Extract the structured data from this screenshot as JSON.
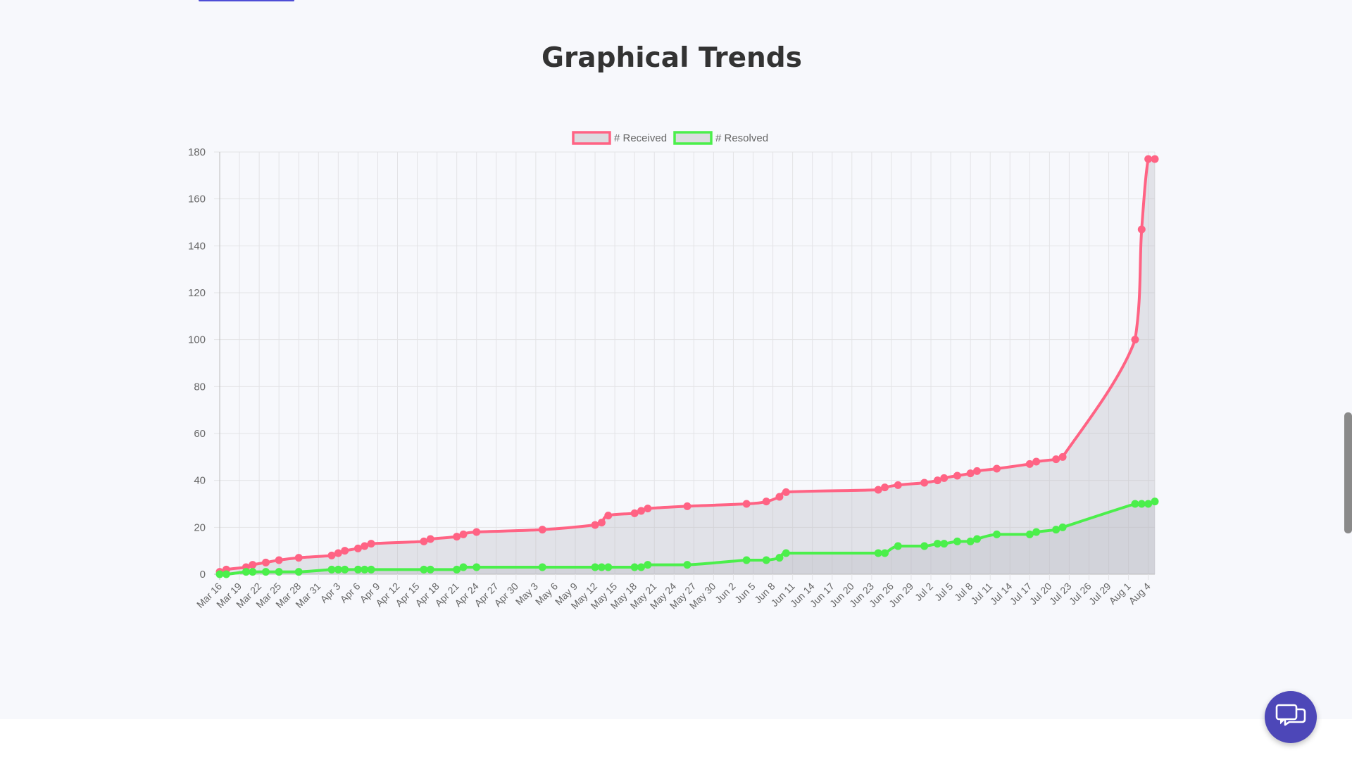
{
  "page": {
    "section_title": "Graphical Trends"
  },
  "chat_widget": {
    "icon": "chat-bubbles-icon"
  },
  "colors": {
    "received": "#ff6384",
    "resolved": "#4bef4b",
    "fill": "rgba(180,180,190,0.32)",
    "chat_button": "#4d47b8"
  },
  "chart_data": {
    "type": "line",
    "title": "",
    "xlabel": "",
    "ylabel": "",
    "ylim": [
      0,
      180
    ],
    "yticks": [
      0,
      20,
      40,
      60,
      80,
      100,
      120,
      140,
      160,
      180
    ],
    "grid": true,
    "legend_position": "top-center",
    "x_range": [
      "2020-03-16",
      "2020-08-04"
    ],
    "x_tick_labels": [
      "Mar 16",
      "Mar 19",
      "Mar 22",
      "Mar 25",
      "Mar 28",
      "Mar 31",
      "Apr 3",
      "Apr 6",
      "Apr 9",
      "Apr 12",
      "Apr 15",
      "Apr 18",
      "Apr 21",
      "Apr 24",
      "Apr 27",
      "Apr 30",
      "May 3",
      "May 6",
      "May 9",
      "May 12",
      "May 15",
      "May 18",
      "May 21",
      "May 24",
      "May 27",
      "May 30",
      "Jun 2",
      "Jun 5",
      "Jun 8",
      "Jun 11",
      "Jun 14",
      "Jun 17",
      "Jun 20",
      "Jun 23",
      "Jun 26",
      "Jun 29",
      "Jul 2",
      "Jul 5",
      "Jul 8",
      "Jul 11",
      "Jul 14",
      "Jul 17",
      "Jul 20",
      "Jul 23",
      "Jul 26",
      "Jul 29",
      "Aug 1",
      "Aug 4"
    ],
    "series": [
      {
        "name": "# Received",
        "points": [
          [
            "2020-03-16",
            1
          ],
          [
            "2020-03-17",
            2
          ],
          [
            "2020-03-20",
            3
          ],
          [
            "2020-03-21",
            4
          ],
          [
            "2020-03-23",
            5
          ],
          [
            "2020-03-25",
            6
          ],
          [
            "2020-03-28",
            7
          ],
          [
            "2020-04-02",
            8
          ],
          [
            "2020-04-03",
            9
          ],
          [
            "2020-04-04",
            10
          ],
          [
            "2020-04-06",
            11
          ],
          [
            "2020-04-07",
            12
          ],
          [
            "2020-04-08",
            13
          ],
          [
            "2020-04-16",
            14
          ],
          [
            "2020-04-17",
            15
          ],
          [
            "2020-04-21",
            16
          ],
          [
            "2020-04-22",
            17
          ],
          [
            "2020-04-24",
            18
          ],
          [
            "2020-05-04",
            19
          ],
          [
            "2020-05-12",
            21
          ],
          [
            "2020-05-13",
            22
          ],
          [
            "2020-05-14",
            25
          ],
          [
            "2020-05-18",
            26
          ],
          [
            "2020-05-19",
            27
          ],
          [
            "2020-05-20",
            28
          ],
          [
            "2020-05-26",
            29
          ],
          [
            "2020-06-04",
            30
          ],
          [
            "2020-06-07",
            31
          ],
          [
            "2020-06-09",
            33
          ],
          [
            "2020-06-10",
            35
          ],
          [
            "2020-06-24",
            36
          ],
          [
            "2020-06-25",
            37
          ],
          [
            "2020-06-27",
            38
          ],
          [
            "2020-07-01",
            39
          ],
          [
            "2020-07-03",
            40
          ],
          [
            "2020-07-04",
            41
          ],
          [
            "2020-07-06",
            42
          ],
          [
            "2020-07-08",
            43
          ],
          [
            "2020-07-09",
            44
          ],
          [
            "2020-07-12",
            45
          ],
          [
            "2020-07-17",
            47
          ],
          [
            "2020-07-18",
            48
          ],
          [
            "2020-07-21",
            49
          ],
          [
            "2020-07-22",
            50
          ],
          [
            "2020-08-02",
            100
          ],
          [
            "2020-08-03",
            147
          ],
          [
            "2020-08-04",
            177
          ],
          [
            "2020-08-05",
            177
          ]
        ]
      },
      {
        "name": "# Resolved",
        "points": [
          [
            "2020-03-16",
            0
          ],
          [
            "2020-03-17",
            0
          ],
          [
            "2020-03-20",
            1
          ],
          [
            "2020-03-21",
            1
          ],
          [
            "2020-03-23",
            1
          ],
          [
            "2020-03-25",
            1
          ],
          [
            "2020-03-28",
            1
          ],
          [
            "2020-04-02",
            2
          ],
          [
            "2020-04-03",
            2
          ],
          [
            "2020-04-04",
            2
          ],
          [
            "2020-04-06",
            2
          ],
          [
            "2020-04-07",
            2
          ],
          [
            "2020-04-08",
            2
          ],
          [
            "2020-04-16",
            2
          ],
          [
            "2020-04-17",
            2
          ],
          [
            "2020-04-21",
            2
          ],
          [
            "2020-04-22",
            3
          ],
          [
            "2020-04-24",
            3
          ],
          [
            "2020-05-04",
            3
          ],
          [
            "2020-05-12",
            3
          ],
          [
            "2020-05-13",
            3
          ],
          [
            "2020-05-14",
            3
          ],
          [
            "2020-05-18",
            3
          ],
          [
            "2020-05-19",
            3
          ],
          [
            "2020-05-20",
            4
          ],
          [
            "2020-05-26",
            4
          ],
          [
            "2020-06-04",
            6
          ],
          [
            "2020-06-07",
            6
          ],
          [
            "2020-06-09",
            7
          ],
          [
            "2020-06-10",
            9
          ],
          [
            "2020-06-24",
            9
          ],
          [
            "2020-06-25",
            9
          ],
          [
            "2020-06-27",
            12
          ],
          [
            "2020-07-01",
            12
          ],
          [
            "2020-07-03",
            13
          ],
          [
            "2020-07-04",
            13
          ],
          [
            "2020-07-06",
            14
          ],
          [
            "2020-07-08",
            14
          ],
          [
            "2020-07-09",
            15
          ],
          [
            "2020-07-12",
            17
          ],
          [
            "2020-07-17",
            17
          ],
          [
            "2020-07-18",
            18
          ],
          [
            "2020-07-21",
            19
          ],
          [
            "2020-07-22",
            20
          ],
          [
            "2020-08-02",
            30
          ],
          [
            "2020-08-03",
            30
          ],
          [
            "2020-08-04",
            30
          ],
          [
            "2020-08-05",
            31
          ]
        ]
      }
    ]
  }
}
